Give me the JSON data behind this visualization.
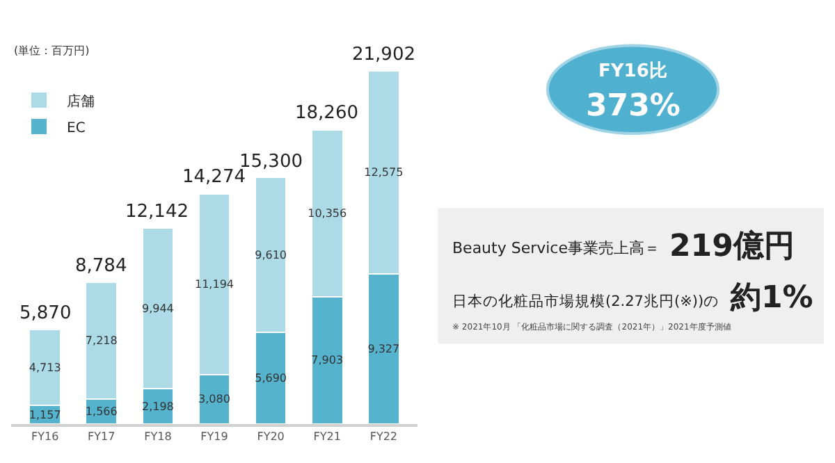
{
  "chart_data": {
    "type": "bar",
    "stacked": true,
    "legend": "top left",
    "grid": false,
    "categories": [
      "FY16",
      "FY17",
      "FY18",
      "FY19",
      "FY20",
      "FY21",
      "FY22"
    ],
    "series": [
      {
        "name": "EC",
        "color": "#55b3cd",
        "values": [
          1157,
          1566,
          2198,
          3080,
          5690,
          7903,
          9327
        ],
        "value_labels": [
          "1,157",
          "1,566",
          "2,198",
          "3,080",
          "5,690",
          "7,903",
          "9,327"
        ]
      },
      {
        "name": "店舗",
        "color": "#acdbe7",
        "values": [
          4713,
          7218,
          9944,
          11194,
          9610,
          10356,
          12575
        ],
        "value_labels": [
          "4,713",
          "7,218",
          "9,944",
          "11,194",
          "9,610",
          "10,356",
          "12,575"
        ]
      }
    ],
    "totals": [
      "5,870",
      "8,784",
      "12,142",
      "14,274",
      "15,300",
      "18,260",
      "21,902"
    ],
    "annotations": [
      "(単位：百万円)",
      "FY16比",
      "373%",
      "Beauty Service事業売上高＝",
      "219億円",
      "日本の化粧品市場規模(2.27兆円(※))の",
      "約1%",
      "※ 2021年10月 「化粧品市場に関する調査（2021年）」2021年度予測値"
    ]
  }
}
